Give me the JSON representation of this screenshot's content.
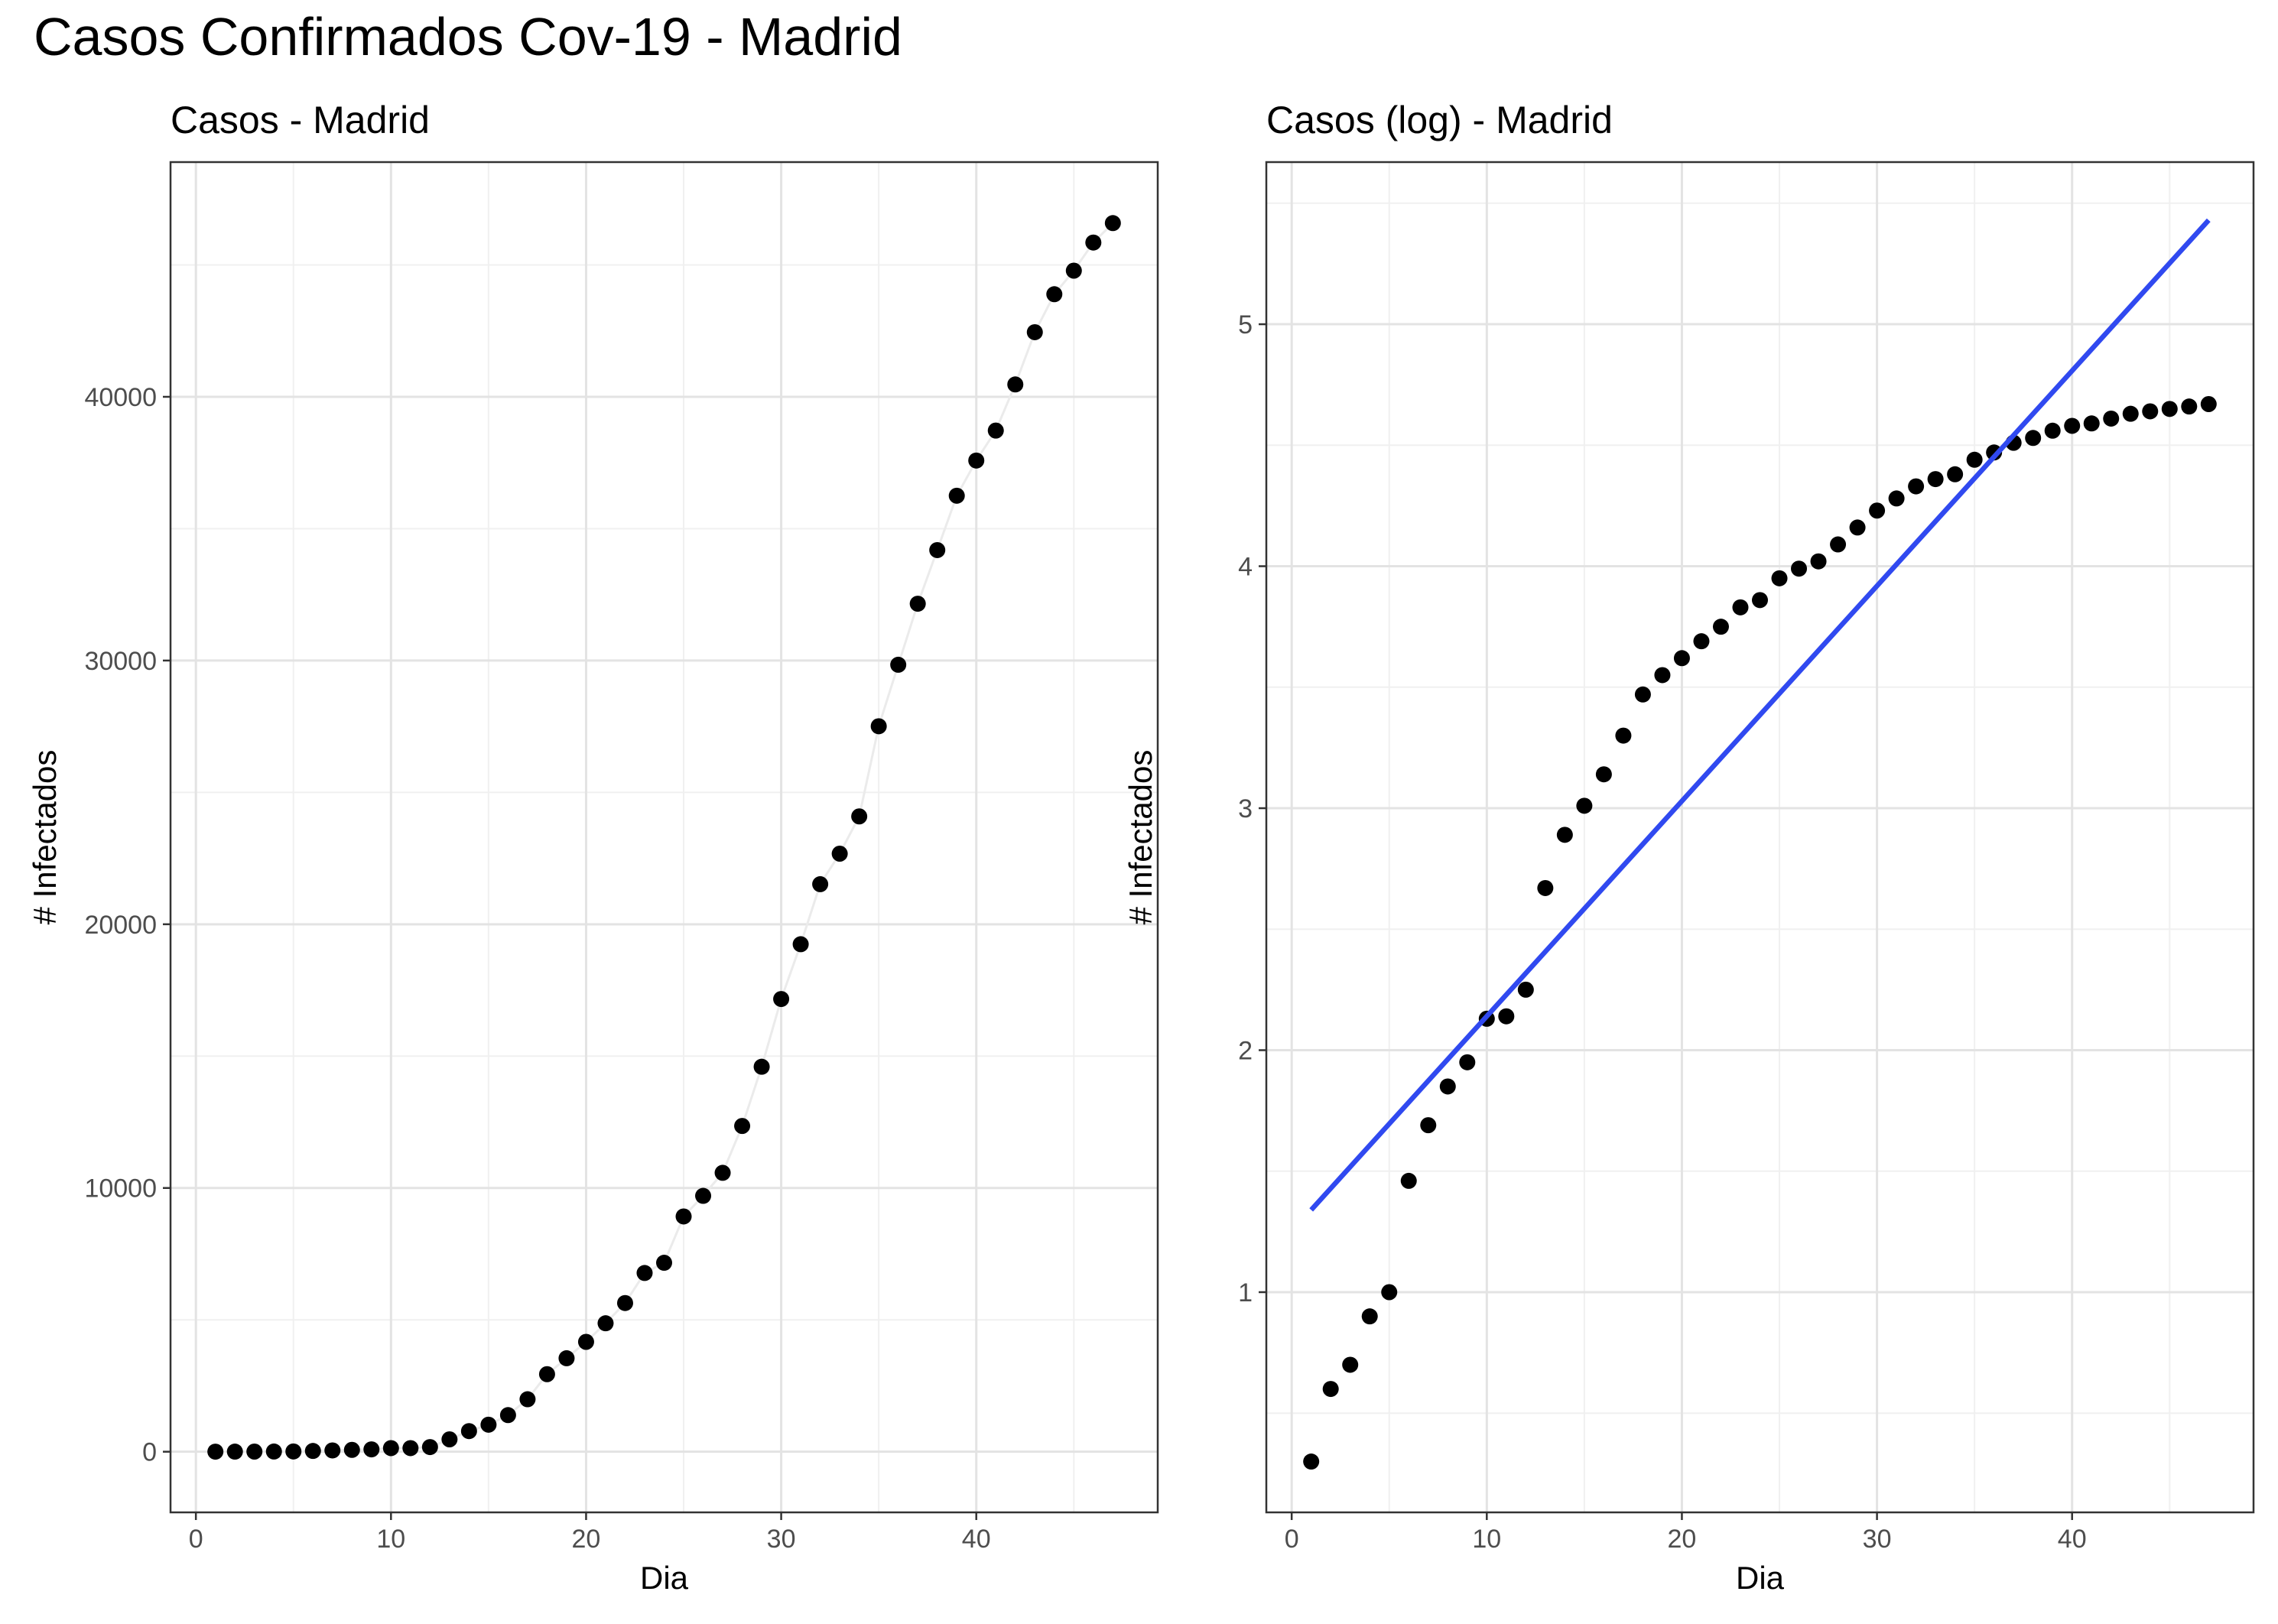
{
  "title": "Casos Confirmados Cov-19 - Madrid",
  "chart_data": [
    {
      "type": "scatter",
      "title": "Casos - Madrid",
      "xlabel": "Dia",
      "ylabel": "# Infectados",
      "xlim": [
        -1.3,
        49.3
      ],
      "ylim": [
        -2300,
        48900
      ],
      "xticks": [
        0,
        10,
        20,
        30,
        40
      ],
      "xtick_labels": [
        "0",
        "10",
        "20",
        "30",
        "40"
      ],
      "yticks": [
        0,
        10000,
        20000,
        30000,
        40000
      ],
      "ytick_labels": [
        "0",
        "10000",
        "20000",
        "30000",
        "40000"
      ],
      "grid": true,
      "connecting_line": true,
      "series": [
        {
          "x": [
            1,
            2,
            3,
            4,
            5,
            6,
            7,
            8,
            9,
            10,
            11,
            12,
            13,
            14,
            15,
            16,
            17,
            18,
            19,
            20,
            21,
            22,
            23,
            24,
            25,
            26,
            27,
            28,
            29,
            30,
            31,
            32,
            33,
            34,
            35,
            36,
            37,
            38,
            39,
            40,
            41,
            42,
            43,
            44,
            45,
            46,
            47
          ],
          "y": [
            2,
            4,
            5,
            8,
            10,
            29,
            49,
            70,
            90,
            136,
            137,
            177,
            469,
            782,
            1024,
            1388,
            1990,
            2940,
            3544,
            4165,
            4871,
            5637,
            6777,
            7165,
            8921,
            9702,
            10575,
            12352,
            14597,
            17166,
            19243,
            21520,
            22677,
            24090,
            27509,
            29840,
            32155,
            34188,
            36249,
            37584,
            38720,
            40469,
            42450,
            43891,
            44783,
            45849,
            46587
          ]
        }
      ]
    },
    {
      "type": "scatter",
      "title": "Casos (log) - Madrid",
      "xlabel": "Dia",
      "ylabel": "# Infectados",
      "xlim": [
        -1.3,
        49.3
      ],
      "ylim": [
        0.09,
        5.67
      ],
      "xticks": [
        0,
        10,
        20,
        30,
        40
      ],
      "xtick_labels": [
        "0",
        "10",
        "20",
        "30",
        "40"
      ],
      "yticks": [
        1,
        2,
        3,
        4,
        5
      ],
      "ytick_labels": [
        "1",
        "2",
        "3",
        "4",
        "5"
      ],
      "grid": true,
      "fit_line": {
        "x": [
          1,
          47
        ],
        "y": [
          1.34,
          5.43
        ],
        "color": "#3049f0"
      },
      "series": [
        {
          "x": [
            1,
            2,
            3,
            4,
            5,
            6,
            7,
            8,
            9,
            10,
            11,
            12,
            13,
            14,
            15,
            16,
            17,
            18,
            19,
            20,
            21,
            22,
            23,
            24,
            25,
            26,
            27,
            28,
            29,
            30,
            31,
            32,
            33,
            34,
            35,
            36,
            37,
            38,
            39,
            40,
            41,
            42,
            43,
            44,
            45,
            46,
            47
          ],
          "y": [
            0.3,
            0.6,
            0.7,
            0.9,
            1.0,
            1.46,
            1.69,
            1.85,
            1.95,
            2.13,
            2.14,
            2.25,
            2.67,
            2.89,
            3.01,
            3.14,
            3.3,
            3.47,
            3.55,
            3.62,
            3.69,
            3.75,
            3.83,
            3.86,
            3.95,
            3.99,
            4.02,
            4.09,
            4.16,
            4.23,
            4.28,
            4.33,
            4.36,
            4.38,
            4.44,
            4.47,
            4.51,
            4.53,
            4.56,
            4.58,
            4.59,
            4.61,
            4.63,
            4.64,
            4.65,
            4.66,
            4.67
          ]
        }
      ]
    }
  ]
}
